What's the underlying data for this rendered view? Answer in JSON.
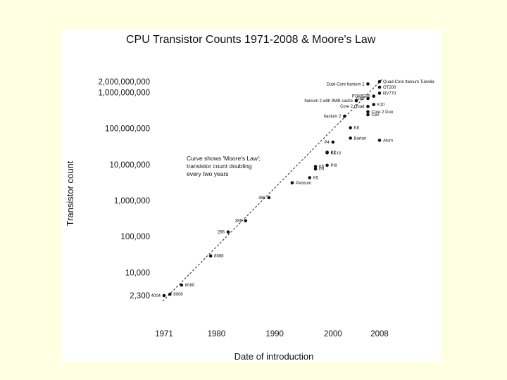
{
  "chart_data": {
    "type": "scatter",
    "title": "CPU Transistor Counts 1971-2008 & Moore's Law",
    "xlabel": "Date of introduction",
    "ylabel": "Transistor count",
    "x_ticks": [
      1971,
      1980,
      1990,
      2000,
      2008
    ],
    "y_ticks": [
      {
        "value": 2300,
        "label": "2,300"
      },
      {
        "value": 10000,
        "label": "10,000"
      },
      {
        "value": 100000,
        "label": "100,000"
      },
      {
        "value": 1000000,
        "label": "1,000,000"
      },
      {
        "value": 10000000,
        "label": "10,000,000"
      },
      {
        "value": 100000000,
        "label": "100,000,000"
      },
      {
        "value": 1000000000,
        "label": "1,000,000,000"
      },
      {
        "value": 2000000000,
        "label": "2,000,000,000"
      }
    ],
    "y_scale": "log",
    "annotation": [
      "Curve shows 'Moore's Law';",
      "transistor count doubling",
      "every two years"
    ],
    "trend": {
      "label": "Moore's Law",
      "doubling_years": 2,
      "from": {
        "x": 1971,
        "y": 2300
      },
      "to": {
        "x": 2008,
        "y": 1800000000
      }
    },
    "points": [
      {
        "x": 1971,
        "y": 2300,
        "label": "4004"
      },
      {
        "x": 1972,
        "y": 2500,
        "label": "8008"
      },
      {
        "x": 1974,
        "y": 4500,
        "label": "8080"
      },
      {
        "x": 1979,
        "y": 29000,
        "label": "8088"
      },
      {
        "x": 1982,
        "y": 134000,
        "label": "286"
      },
      {
        "x": 1985,
        "y": 275000,
        "label": "386"
      },
      {
        "x": 1989,
        "y": 1200000,
        "label": "486"
      },
      {
        "x": 1993,
        "y": 3100000,
        "label": "Pentium"
      },
      {
        "x": 1996,
        "y": 4300000,
        "label": "K5"
      },
      {
        "x": 1997,
        "y": 7500000,
        "label": "PII"
      },
      {
        "x": 1997,
        "y": 8800000,
        "label": "K6"
      },
      {
        "x": 1999,
        "y": 9500000,
        "label": "PIII"
      },
      {
        "x": 1999,
        "y": 21000000,
        "label": "K6-III"
      },
      {
        "x": 1999,
        "y": 22000000,
        "label": "K7"
      },
      {
        "x": 2000,
        "y": 42000000,
        "label": "P4"
      },
      {
        "x": 2003,
        "y": 54000000,
        "label": "Barton"
      },
      {
        "x": 2003,
        "y": 105000000,
        "label": "K8"
      },
      {
        "x": 2002,
        "y": 220000000,
        "label": "Itanium 2"
      },
      {
        "x": 2006,
        "y": 241000000,
        "label": "Cell"
      },
      {
        "x": 2006,
        "y": 291000000,
        "label": "Core 2 Duo"
      },
      {
        "x": 2006,
        "y": 410000000,
        "label": "Core 2 Quad"
      },
      {
        "x": 2004,
        "y": 592000000,
        "label": "Itanium 2 with 9MB cache"
      },
      {
        "x": 2007,
        "y": 463000000,
        "label": "K10"
      },
      {
        "x": 2006,
        "y": 680000000,
        "label": "G80"
      },
      {
        "x": 2007,
        "y": 790000000,
        "label": "POWER6"
      },
      {
        "x": 2008,
        "y": 956000000,
        "label": "RV770"
      },
      {
        "x": 2008,
        "y": 1400000000,
        "label": "GT200"
      },
      {
        "x": 2006,
        "y": 1720000000,
        "label": "Dual-Core Itanium 2"
      },
      {
        "x": 2008,
        "y": 2000000000,
        "label": "Quad-Core Itanium Tukwila"
      },
      {
        "x": 2008,
        "y": 47000000,
        "label": "Atom"
      }
    ]
  }
}
